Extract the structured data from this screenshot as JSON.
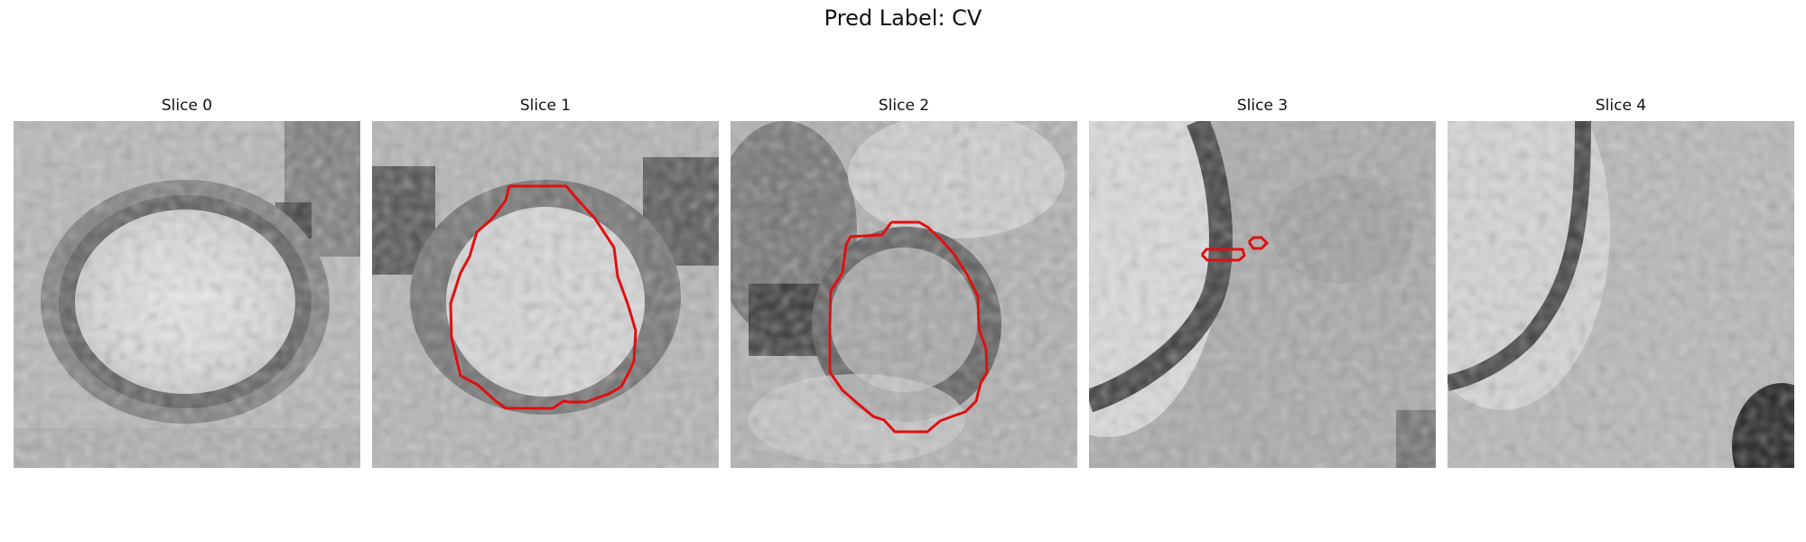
{
  "figure": {
    "title": "Pred Label: CV"
  },
  "slices": [
    {
      "title": "Slice 0",
      "has_contour": false
    },
    {
      "title": "Slice 1",
      "has_contour": true
    },
    {
      "title": "Slice 2",
      "has_contour": true
    },
    {
      "title": "Slice 3",
      "has_contour": true
    },
    {
      "title": "Slice 4",
      "has_contour": false
    }
  ],
  "colors": {
    "contour": "#e01010",
    "background": "#ffffff"
  }
}
